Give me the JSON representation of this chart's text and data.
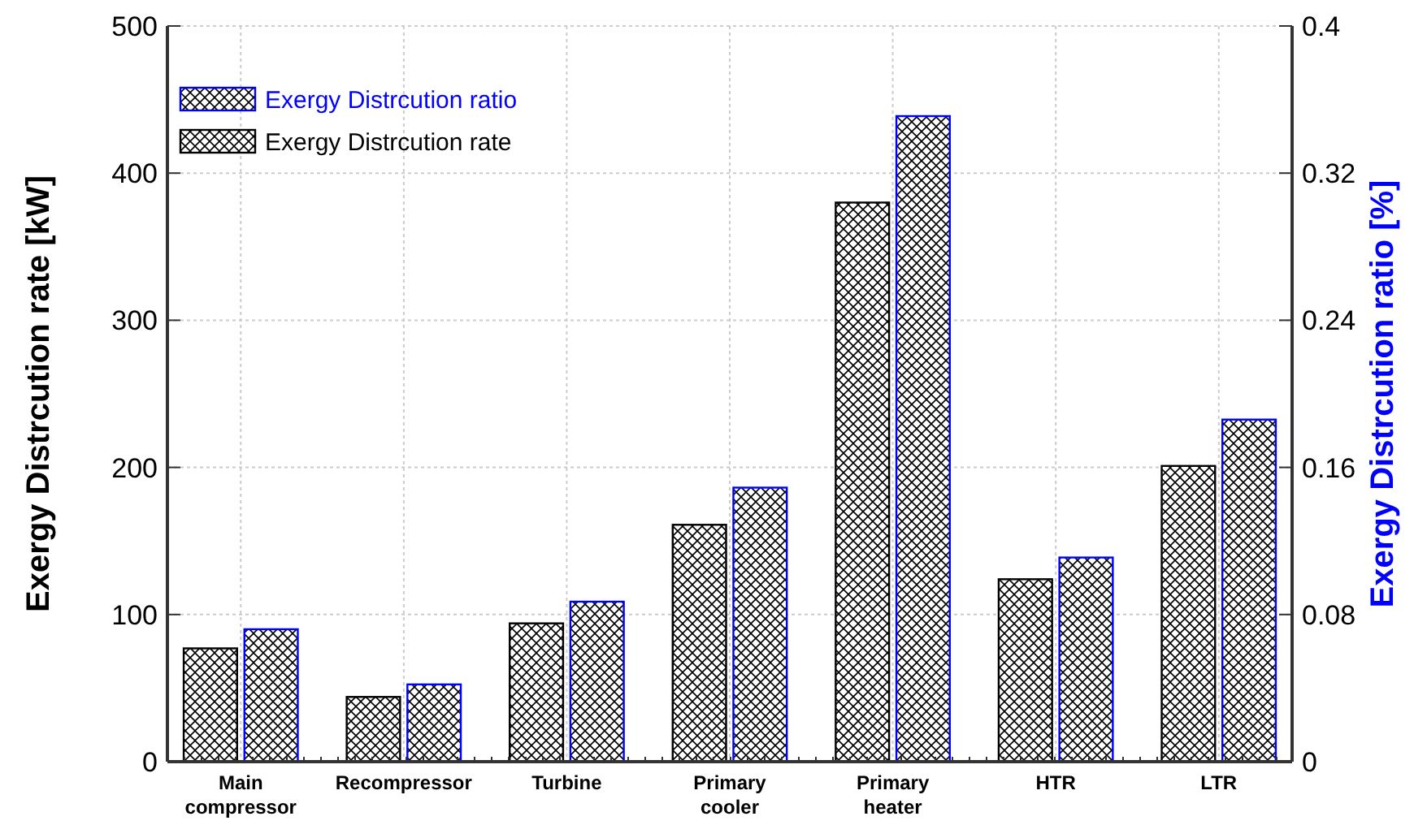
{
  "chart_data": {
    "type": "bar",
    "categories": [
      "Main compressor",
      "Recompressor",
      "Turbine",
      "Primary cooler",
      "Primary heater",
      "HTR",
      "LTR"
    ],
    "series": [
      {
        "name": "Exergy Distrcution rate",
        "color": "#000000",
        "values": [
          77,
          44,
          94,
          161,
          380,
          124,
          201
        ]
      },
      {
        "name": "Exergy Distrcution ratio",
        "color": "#0000ff",
        "axis": "y2",
        "values": [
          0.072,
          0.042,
          0.087,
          0.149,
          0.351,
          0.111,
          0.186
        ]
      }
    ],
    "ylabel": "Exergy Distrcution rate [kW]",
    "y2label": "Exergy Distrcution ratio [%]",
    "ylim": [
      0,
      500
    ],
    "yticks": [
      0,
      100,
      200,
      300,
      400,
      500
    ],
    "y2lim": [
      0,
      0.4
    ],
    "y2ticks": [
      0,
      0.08,
      0.16,
      0.24,
      0.32,
      0.4
    ],
    "grid": true,
    "legend": "top left"
  }
}
